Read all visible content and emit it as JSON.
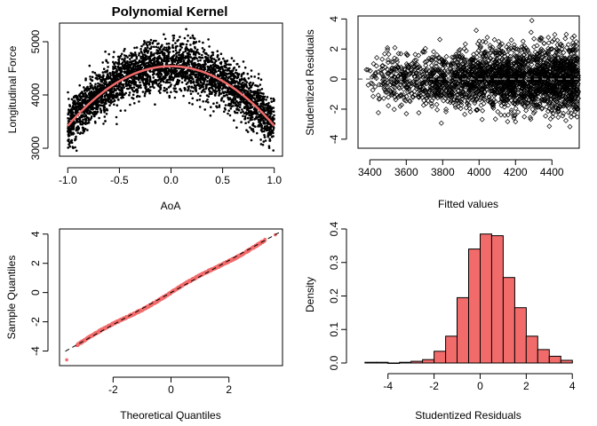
{
  "chart_data": [
    {
      "id": "p1",
      "type": "scatter",
      "title": "Polynomial Kernel",
      "xlabel": "AoA",
      "ylabel": "Longitudinal Force",
      "xlim": [
        -1.08,
        1.08
      ],
      "ylim": [
        2850,
        5350
      ],
      "xticks": [
        -1.0,
        -0.5,
        0.0,
        0.5,
        1.0
      ],
      "xtick_labels": [
        "-1.0",
        "-0.5",
        "0.0",
        "0.5",
        "1.0"
      ],
      "yticks": [
        3000,
        4000,
        5000
      ],
      "ytick_labels": [
        "3000",
        "4000",
        "5000"
      ],
      "fit_curve": {
        "vertex_x": 0.0,
        "vertex_y": 4540,
        "endpoint_y": 3420,
        "color": "#f26b6b"
      },
      "point_spread": {
        "x_range": [
          -1.0,
          1.0
        ],
        "y_sd": 230
      },
      "point_color": "#000000"
    },
    {
      "id": "p2",
      "type": "scatter",
      "title": "",
      "xlabel": "Fitted values",
      "ylabel": "Studentized Residuals",
      "xlim": [
        3335,
        4550
      ],
      "ylim": [
        -4.6,
        4.2
      ],
      "xticks": [
        3400,
        3600,
        3800,
        4000,
        4200,
        4400
      ],
      "xtick_labels": [
        "3400",
        "3600",
        "3800",
        "4000",
        "4200",
        "4400"
      ],
      "yticks": [
        -4,
        -2,
        0,
        2,
        4
      ],
      "ytick_labels": [
        "-4",
        "-2",
        "0",
        "2",
        "4"
      ],
      "x_range": [
        3370,
        4545
      ],
      "reference_line": {
        "y": 0,
        "style": "dashed",
        "color": "#808080"
      },
      "marker": "open-diamond"
    },
    {
      "id": "p3",
      "type": "scatter",
      "title": "",
      "xlabel": "Theoretical Quantiles",
      "ylabel": "Sample Quantiles",
      "xlim": [
        -3.85,
        3.85
      ],
      "ylim": [
        -5.0,
        4.35
      ],
      "xticks": [
        -2,
        0,
        2
      ],
      "xtick_labels": [
        "-2",
        "0",
        "2"
      ],
      "yticks": [
        -4,
        -2,
        0,
        2,
        4
      ],
      "ytick_labels": [
        "-4",
        "-2",
        "0",
        "2",
        "4"
      ],
      "qq_range": [
        -3.6,
        3.6
      ],
      "reference_line": {
        "slope": 1.1,
        "intercept": 0.0,
        "style": "dashed",
        "color": "#000000"
      },
      "point_color": "#f26b6b",
      "outliers": [
        [
          -3.6,
          -4.6
        ],
        [
          3.6,
          3.95
        ]
      ]
    },
    {
      "id": "p4",
      "type": "bar",
      "title": "",
      "xlabel": "Studentized Residuals",
      "ylabel": "Density",
      "xlim": [
        -5.3,
        4.3
      ],
      "ylim": [
        0,
        0.4
      ],
      "xticks": [
        -4,
        -2,
        0,
        2,
        4
      ],
      "xtick_labels": [
        "-4",
        "-2",
        "0",
        "2",
        "4"
      ],
      "yticks": [
        0.0,
        0.1,
        0.2,
        0.3,
        0.4
      ],
      "ytick_labels": [
        "0.0",
        "0.1",
        "0.2",
        "0.3",
        "0.4"
      ],
      "bin_edges": [
        -5.0,
        -4.5,
        -4.0,
        -3.5,
        -3.0,
        -2.5,
        -2.0,
        -1.5,
        -1.0,
        -0.5,
        0.0,
        0.5,
        1.0,
        1.5,
        2.0,
        2.5,
        3.0,
        3.5,
        4.0
      ],
      "values": [
        0.002,
        0.002,
        0.0,
        0.002,
        0.005,
        0.01,
        0.035,
        0.08,
        0.195,
        0.34,
        0.385,
        0.38,
        0.255,
        0.165,
        0.08,
        0.04,
        0.02,
        0.008
      ],
      "bar_color": "#f26b6b"
    }
  ]
}
